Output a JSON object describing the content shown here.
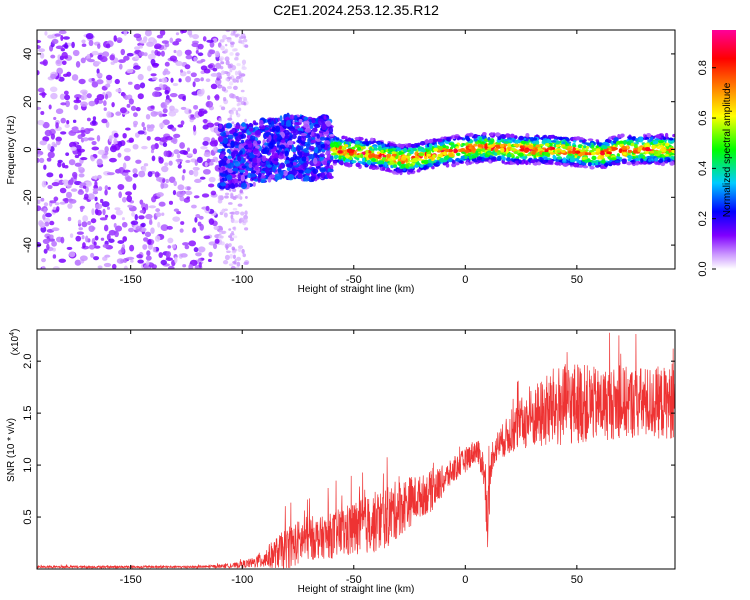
{
  "chart_data": [
    {
      "type": "heatmap",
      "title": "C2E1.2024.253.12.35.R12",
      "xlabel": "Height of straight line (km)",
      "ylabel": "Frequency (Hz)",
      "xlim": [
        -192,
        94
      ],
      "ylim": [
        -50,
        50
      ],
      "x_ticks": [
        -150,
        -100,
        -50,
        0,
        50
      ],
      "y_ticks": [
        -40,
        -20,
        0,
        20,
        40
      ],
      "colorbar": {
        "label": "Normalized spectral amplitude",
        "range": [
          0.0,
          0.95
        ],
        "ticks": [
          "0.0",
          "0.2",
          "0.4",
          "0.6",
          "0.8"
        ],
        "tick_values": [
          0.0,
          0.2,
          0.4,
          0.6,
          0.8
        ]
      },
      "ridge": {
        "x": [
          -100,
          -90,
          -80,
          -70,
          -60,
          -50,
          -40,
          -30,
          -25,
          -20,
          -10,
          0,
          10,
          20,
          30,
          40,
          50,
          60,
          70,
          80,
          94
        ],
        "frequency": [
          -4,
          -2,
          0,
          -1,
          0,
          -1,
          -2,
          -4,
          -4,
          -3,
          -1,
          0,
          1,
          0,
          0,
          0,
          -1,
          -2,
          0,
          0,
          0
        ]
      },
      "regions": [
        {
          "x_range": [
            -192,
            -110
          ],
          "frequency_range": [
            -50,
            50
          ],
          "amplitude": [
            0.02,
            0.15
          ],
          "description": "scattered noise"
        },
        {
          "x_range": [
            -110,
            -60
          ],
          "frequency_range": [
            -12,
            14
          ],
          "amplitude": [
            0.1,
            0.3
          ]
        },
        {
          "x_range": [
            -60,
            94
          ],
          "frequency_range": [
            -6,
            6
          ],
          "amplitude": [
            0.3,
            0.95
          ]
        }
      ]
    },
    {
      "type": "line",
      "xlabel": "Height of straight line (km)",
      "ylabel": "SNR (10 * v/v)",
      "scale_label": "(x10",
      "scale_exponent": "4",
      "scale_close": ")",
      "xlim": [
        -192,
        94
      ],
      "ylim": [
        0,
        2.3
      ],
      "x_ticks": [
        -150,
        -100,
        -50,
        0,
        50
      ],
      "y_ticks": [
        0.5,
        1.0,
        1.5,
        2.0
      ],
      "y_tick_labels": [
        "0.5",
        "1.0",
        "1.5",
        "2.0"
      ],
      "series": [
        {
          "name": "SNR",
          "color": "#ee3333",
          "envelope_x": [
            -192,
            -120,
            -105,
            -95,
            -90,
            -85,
            -80,
            -75,
            -70,
            -65,
            -60,
            -55,
            -50,
            -45,
            -40,
            -35,
            -30,
            -25,
            -20,
            -15,
            -10,
            -5,
            0,
            5,
            8,
            10,
            12,
            15,
            20,
            25,
            30,
            35,
            40,
            50,
            60,
            70,
            80,
            94
          ],
          "envelope_mean": [
            0.02,
            0.02,
            0.03,
            0.06,
            0.1,
            0.15,
            0.2,
            0.25,
            0.3,
            0.3,
            0.32,
            0.35,
            0.38,
            0.42,
            0.45,
            0.5,
            0.58,
            0.65,
            0.7,
            0.75,
            0.85,
            0.95,
            1.05,
            1.15,
            1.0,
            0.5,
            1.1,
            1.2,
            1.3,
            1.4,
            1.45,
            1.5,
            1.55,
            1.6,
            1.58,
            1.6,
            1.6,
            1.6
          ],
          "envelope_spread": [
            0.01,
            0.01,
            0.02,
            0.05,
            0.1,
            0.15,
            0.2,
            0.22,
            0.22,
            0.2,
            0.22,
            0.25,
            0.28,
            0.28,
            0.3,
            0.3,
            0.28,
            0.25,
            0.2,
            0.2,
            0.15,
            0.12,
            0.12,
            0.12,
            0.15,
            0.3,
            0.15,
            0.15,
            0.2,
            0.25,
            0.3,
            0.35,
            0.4,
            0.4,
            0.35,
            0.35,
            0.35,
            0.35
          ]
        }
      ]
    }
  ]
}
